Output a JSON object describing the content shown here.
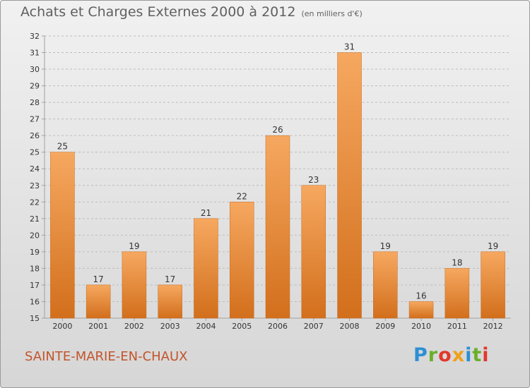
{
  "header": {
    "title": "Achats et Charges Externes 2000 à 2012",
    "subtitle": "(en milliers d'€)"
  },
  "footer": {
    "commune": "SAINTE-MARIE-EN-CHAUX",
    "logo": "Proxiti",
    "logo_colors": [
      "#2d8fd5",
      "#6aaf2a",
      "#e2372b",
      "#f0a01a",
      "#2d8fd5",
      "#6aaf2a",
      "#e2372b"
    ]
  },
  "colors": {
    "bar_top": "#f6a860",
    "bar_bottom": "#d26f1c",
    "bar_edge": "#c96a1c",
    "axis": "#a0a0a0",
    "grid": "#bdbdbd",
    "text": "#333333",
    "commune_text": "#c3542b"
  },
  "chart_data": {
    "type": "bar",
    "title": "Achats et Charges Externes 2000 à 2012",
    "subtitle": "(en milliers d'€)",
    "categories": [
      "2000",
      "2001",
      "2002",
      "2003",
      "2004",
      "2005",
      "2006",
      "2007",
      "2008",
      "2009",
      "2010",
      "2011",
      "2012"
    ],
    "values": [
      25,
      17,
      19,
      17,
      21,
      22,
      26,
      23,
      31,
      19,
      16,
      18,
      19
    ],
    "ylim": [
      15,
      32
    ],
    "yticks": [
      15,
      16,
      17,
      18,
      19,
      20,
      21,
      22,
      23,
      24,
      25,
      26,
      27,
      28,
      29,
      30,
      31,
      32
    ],
    "grid": "horizontal dashed",
    "legend": "none"
  }
}
